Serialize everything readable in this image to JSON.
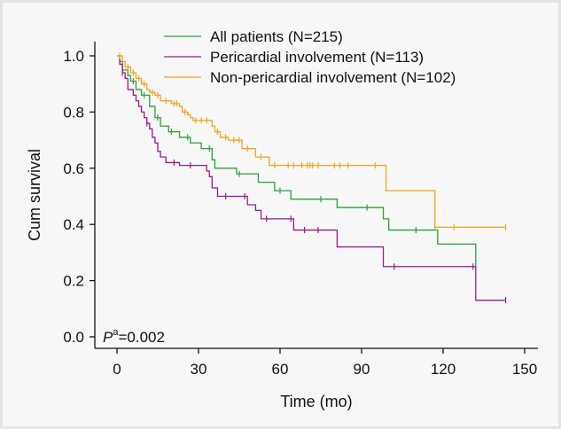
{
  "chart_data": {
    "type": "line",
    "subtype": "kaplan-meier",
    "xlabel": "Time (mo)",
    "ylabel": "Cum survival",
    "xlim": [
      0,
      150
    ],
    "ylim": [
      0,
      1.0
    ],
    "x_ticks": [
      "0",
      "30",
      "60",
      "90",
      "120",
      "150"
    ],
    "y_ticks": [
      "0.0",
      "0.2",
      "0.4",
      "0.6",
      "0.8",
      "1.0"
    ],
    "grid": false,
    "legend_position": "top",
    "annotation": {
      "p_symbol": "P",
      "p_superscript": "a",
      "p_value": "=0.002"
    },
    "series": [
      {
        "name": "All patients (N=215)",
        "color": "#2e9e3e",
        "steps": [
          [
            0,
            1.0
          ],
          [
            1,
            0.98
          ],
          [
            2,
            0.95
          ],
          [
            4,
            0.93
          ],
          [
            5,
            0.91
          ],
          [
            7,
            0.88
          ],
          [
            9,
            0.86
          ],
          [
            12,
            0.82
          ],
          [
            14,
            0.78
          ],
          [
            16,
            0.75
          ],
          [
            19,
            0.73
          ],
          [
            23,
            0.71
          ],
          [
            27,
            0.69
          ],
          [
            31,
            0.67
          ],
          [
            35,
            0.63
          ],
          [
            36,
            0.6
          ],
          [
            44,
            0.58
          ],
          [
            52,
            0.55
          ],
          [
            58,
            0.52
          ],
          [
            64,
            0.49
          ],
          [
            81,
            0.46
          ],
          [
            98,
            0.42
          ],
          [
            100,
            0.38
          ],
          [
            118,
            0.33
          ],
          [
            132,
            0.25
          ]
        ],
        "end": 132,
        "censor": [
          2,
          6,
          10,
          15,
          20,
          26,
          34,
          45,
          60,
          75,
          92,
          110
        ]
      },
      {
        "name": "Pericardial involvement (N=113)",
        "color": "#9a1b8a",
        "steps": [
          [
            0,
            1.0
          ],
          [
            1,
            0.97
          ],
          [
            2,
            0.94
          ],
          [
            3,
            0.92
          ],
          [
            4,
            0.88
          ],
          [
            6,
            0.86
          ],
          [
            7,
            0.84
          ],
          [
            8,
            0.82
          ],
          [
            9,
            0.8
          ],
          [
            10,
            0.78
          ],
          [
            11,
            0.76
          ],
          [
            12,
            0.74
          ],
          [
            13,
            0.71
          ],
          [
            14,
            0.69
          ],
          [
            15,
            0.66
          ],
          [
            16,
            0.64
          ],
          [
            18,
            0.62
          ],
          [
            23,
            0.61
          ],
          [
            33,
            0.59
          ],
          [
            34,
            0.57
          ],
          [
            35,
            0.53
          ],
          [
            37,
            0.5
          ],
          [
            48,
            0.47
          ],
          [
            51,
            0.45
          ],
          [
            53,
            0.42
          ],
          [
            65,
            0.38
          ],
          [
            81,
            0.32
          ],
          [
            98,
            0.25
          ],
          [
            132,
            0.13
          ]
        ],
        "end": 143,
        "censor": [
          2,
          11,
          21,
          27,
          40,
          47,
          55,
          64,
          69,
          74,
          102,
          131,
          143
        ]
      },
      {
        "name": "Non-pericardial involvement (N=102)",
        "color": "#f5a21a",
        "steps": [
          [
            0,
            1.0
          ],
          [
            2,
            0.98
          ],
          [
            3,
            0.96
          ],
          [
            5,
            0.94
          ],
          [
            7,
            0.92
          ],
          [
            9,
            0.9
          ],
          [
            11,
            0.88
          ],
          [
            12,
            0.87
          ],
          [
            14,
            0.86
          ],
          [
            16,
            0.84
          ],
          [
            20,
            0.83
          ],
          [
            23,
            0.82
          ],
          [
            24,
            0.8
          ],
          [
            26,
            0.79
          ],
          [
            27,
            0.78
          ],
          [
            28,
            0.77
          ],
          [
            35,
            0.75
          ],
          [
            36,
            0.73
          ],
          [
            38,
            0.71
          ],
          [
            41,
            0.7
          ],
          [
            46,
            0.67
          ],
          [
            51,
            0.64
          ],
          [
            56,
            0.61
          ],
          [
            99,
            0.52
          ],
          [
            117,
            0.39
          ]
        ],
        "end": 143,
        "censor": [
          1,
          4,
          6,
          8,
          10,
          13,
          15,
          18,
          21,
          22,
          25,
          29,
          31,
          33,
          37,
          40,
          43,
          45,
          48,
          53,
          58,
          63,
          65,
          68,
          70,
          71,
          72,
          74,
          80,
          82,
          85,
          95,
          117,
          124,
          143
        ]
      }
    ]
  }
}
